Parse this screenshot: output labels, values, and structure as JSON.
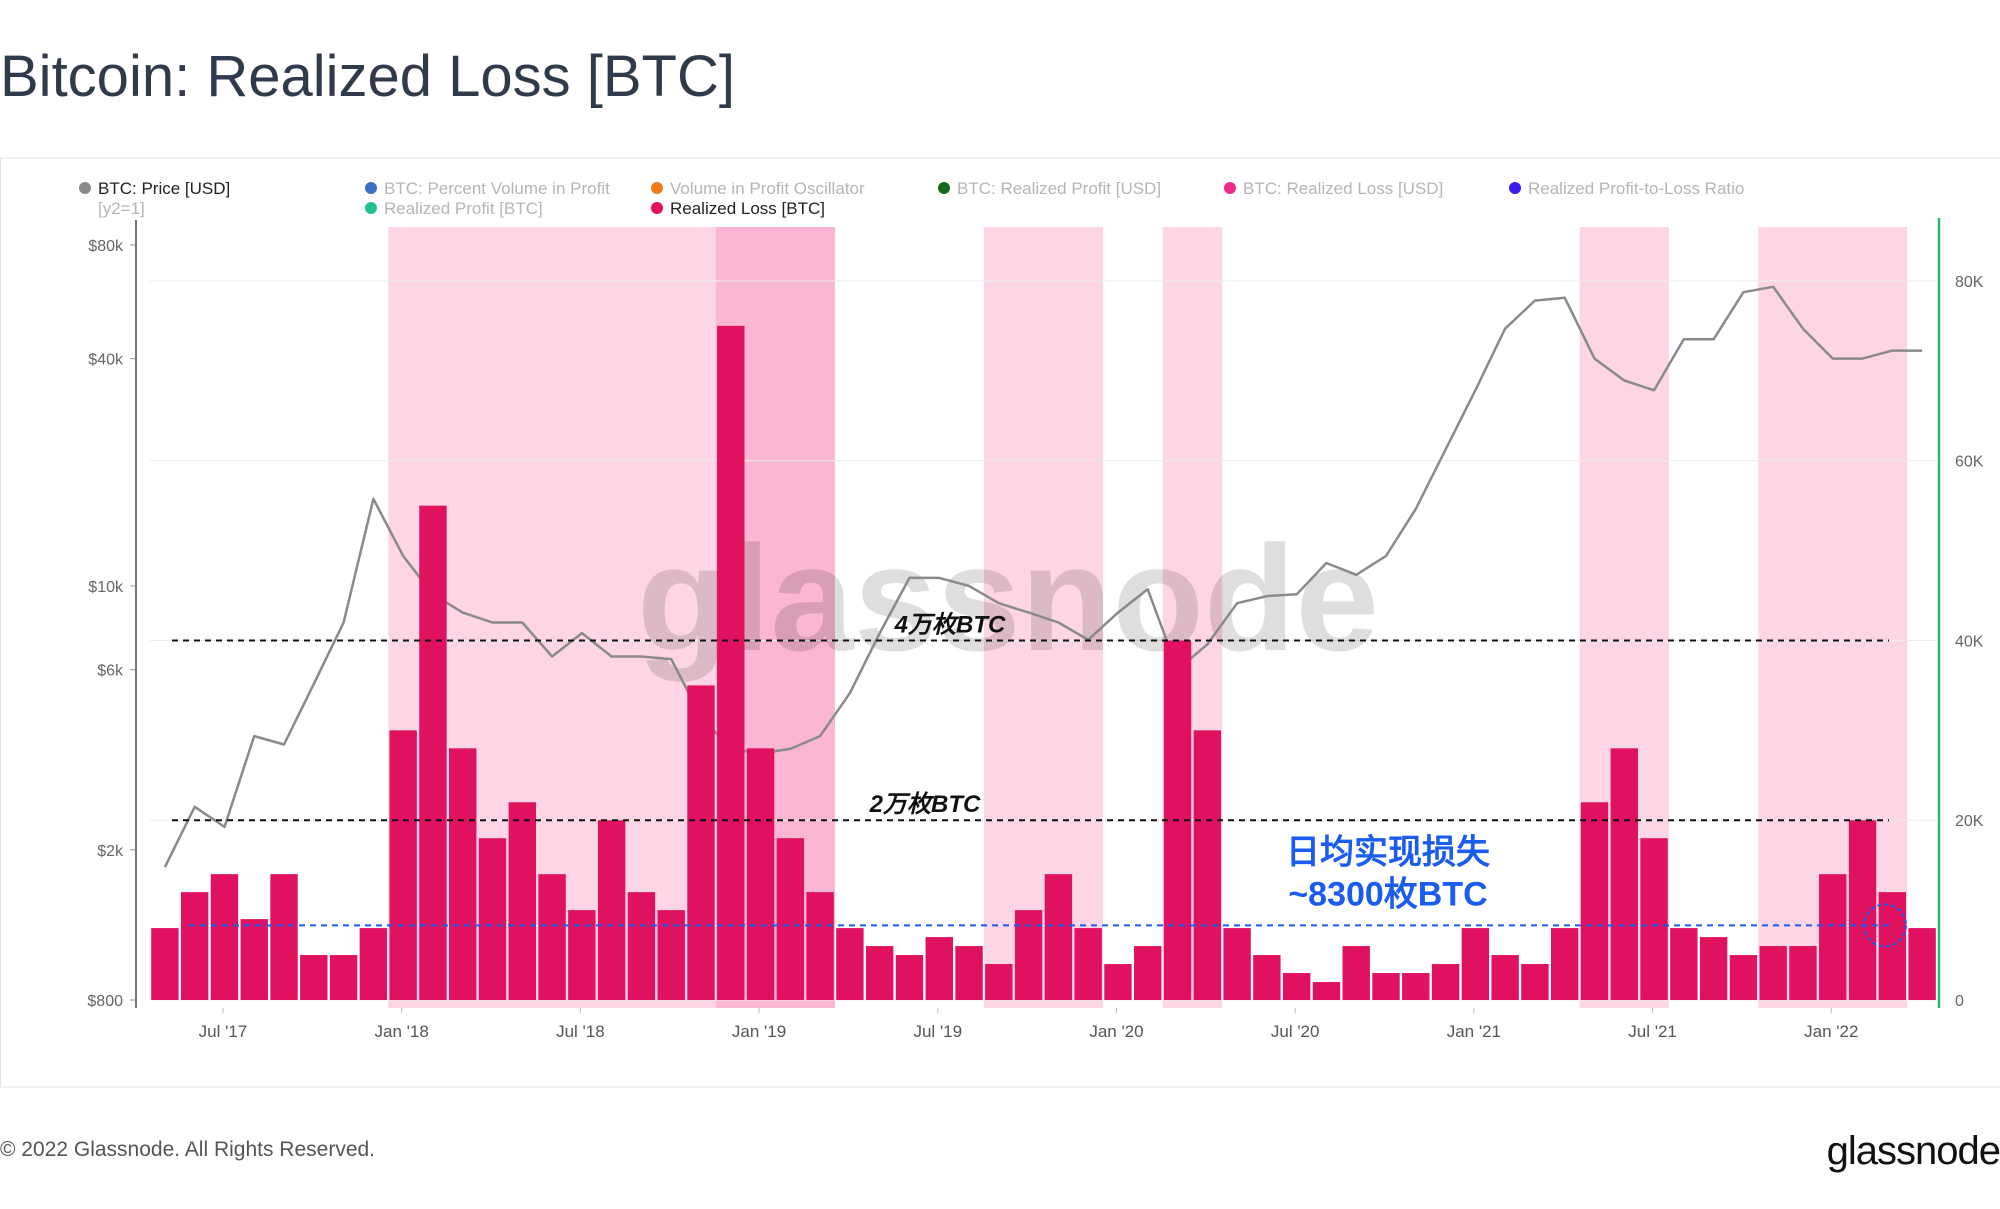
{
  "chart_data": {
    "type": "bar-line",
    "title": "Bitcoin: Realized Loss [BTC]",
    "footer": "© 2022 Glassnode. All Rights Reserved.",
    "logo": "glassnode",
    "watermark": "glassnode",
    "y2_note": "[y2=1]",
    "x": [
      "2017-05",
      "2017-06",
      "2017-07",
      "2017-08",
      "2017-09",
      "2017-10",
      "2017-11",
      "2017-12",
      "2018-01",
      "2018-02",
      "2018-03",
      "2018-04",
      "2018-05",
      "2018-06",
      "2018-07",
      "2018-08",
      "2018-09",
      "2018-10",
      "2018-11",
      "2018-12",
      "2019-01",
      "2019-02",
      "2019-03",
      "2019-04",
      "2019-05",
      "2019-06",
      "2019-07",
      "2019-08",
      "2019-09",
      "2019-10",
      "2019-11",
      "2019-12",
      "2020-01",
      "2020-02",
      "2020-03",
      "2020-04",
      "2020-05",
      "2020-06",
      "2020-07",
      "2020-08",
      "2020-09",
      "2020-10",
      "2020-11",
      "2020-12",
      "2021-01",
      "2021-02",
      "2021-03",
      "2021-04",
      "2021-05",
      "2021-06",
      "2021-07",
      "2021-08",
      "2021-09",
      "2021-10",
      "2021-11",
      "2021-12",
      "2022-01",
      "2022-02",
      "2022-03",
      "2022-04"
    ],
    "xlim": [
      "2017-05",
      "2022-05"
    ],
    "xticks": [
      {
        "value": "2017-07",
        "label": "Jul '17"
      },
      {
        "value": "2018-01",
        "label": "Jan '18"
      },
      {
        "value": "2018-07",
        "label": "Jul '18"
      },
      {
        "value": "2019-01",
        "label": "Jan '19"
      },
      {
        "value": "2019-07",
        "label": "Jul '19"
      },
      {
        "value": "2020-01",
        "label": "Jan '20"
      },
      {
        "value": "2020-07",
        "label": "Jul '20"
      },
      {
        "value": "2021-01",
        "label": "Jan '21"
      },
      {
        "value": "2021-07",
        "label": "Jul '21"
      },
      {
        "value": "2022-01",
        "label": "Jan '22"
      }
    ],
    "ylim": [
      800,
      80000
    ],
    "log_scale": true,
    "yticks": [
      {
        "value": 800,
        "label": "$800"
      },
      {
        "value": 2000,
        "label": "$2k"
      },
      {
        "value": 6000,
        "label": "$6k"
      },
      {
        "value": 10000,
        "label": "$10k"
      },
      {
        "value": 40000,
        "label": "$40k"
      },
      {
        "value": 80000,
        "label": "$80k"
      }
    ],
    "y2lim": [
      0,
      86000
    ],
    "y2ticks": [
      0,
      {
        "value": 20000,
        "label": "20K"
      },
      {
        "value": 40000,
        "label": "40K"
      },
      {
        "value": 60000,
        "label": "60K"
      },
      {
        "value": 80000,
        "label": "80K"
      }
    ],
    "grid": true,
    "series": [
      {
        "name": "BTC: Price [USD]",
        "color": "#8a8a8a",
        "kind": "line",
        "values": [
          1800,
          2600,
          2300,
          4000,
          3800,
          5500,
          8000,
          17000,
          12000,
          9500,
          8500,
          8000,
          8000,
          6500,
          7500,
          6500,
          6500,
          6400,
          4500,
          3700,
          3600,
          3700,
          4000,
          5200,
          7500,
          10500,
          10500,
          10000,
          9000,
          8500,
          8000,
          7200,
          8500,
          9800,
          6000,
          7000,
          9000,
          9400,
          9500,
          11500,
          10700,
          12000,
          16000,
          23000,
          33000,
          48000,
          57000,
          58000,
          40000,
          35000,
          33000,
          45000,
          45000,
          60000,
          62000,
          48000,
          40000,
          40000,
          42000,
          42000
        ]
      },
      {
        "name": "Realized Loss [BTC]",
        "color": "#e0115f",
        "kind": "bar",
        "axis": "y2",
        "values": [
          8000,
          12000,
          14000,
          9000,
          14000,
          5000,
          5000,
          8000,
          30000,
          55000,
          28000,
          18000,
          22000,
          14000,
          10000,
          20000,
          12000,
          10000,
          35000,
          75000,
          28000,
          18000,
          12000,
          8000,
          6000,
          5000,
          7000,
          6000,
          4000,
          10000,
          14000,
          8000,
          4000,
          6000,
          40000,
          30000,
          8000,
          5000,
          3000,
          2000,
          6000,
          3000,
          3000,
          4000,
          8000,
          5000,
          4000,
          8000,
          22000,
          28000,
          18000,
          8000,
          7000,
          5000,
          6000,
          6000,
          14000,
          20000,
          12000,
          8000
        ]
      }
    ],
    "inactive_legend": [
      {
        "name": "BTC: Percent Volume in Profit",
        "color": "#3a6fc4"
      },
      {
        "name": "Volume in Profit Oscillator",
        "color": "#f07a1a"
      },
      {
        "name": "BTC: Realized Profit [USD]",
        "color": "#17661c"
      },
      {
        "name": "BTC: Realized Loss [USD]",
        "color": "#f0288a"
      },
      {
        "name": "Realized Profit-to-Loss Ratio",
        "color": "#3a1cf0"
      },
      {
        "name": "Realized Profit [BTC]",
        "color": "#22c08a"
      }
    ],
    "shaded_ranges": [
      {
        "start": "2018-01",
        "end": "2018-12",
        "color": "#fdd5e5"
      },
      {
        "start": "2018-12",
        "end": "2019-04",
        "color": "#fab6d2"
      },
      {
        "start": "2019-09",
        "end": "2020-01",
        "color": "#fdd5e5"
      },
      {
        "start": "2020-03",
        "end": "2020-05",
        "color": "#fdd5e5"
      },
      {
        "start": "2021-05",
        "end": "2021-08",
        "color": "#fdd5e5"
      },
      {
        "start": "2021-11",
        "end": "2022-04",
        "color": "#fdd5e5"
      }
    ],
    "reference_lines": [
      {
        "value": 40000,
        "labels": [
          "4万枚BTC"
        ],
        "color": "#111111"
      },
      {
        "value": 20000,
        "labels": [
          "2万枚BTC"
        ],
        "color": "#111111"
      },
      {
        "value": 8300,
        "labels": [
          "日均实现损失",
          "~8300枚BTC"
        ],
        "color": "#1a5cf0"
      }
    ]
  }
}
